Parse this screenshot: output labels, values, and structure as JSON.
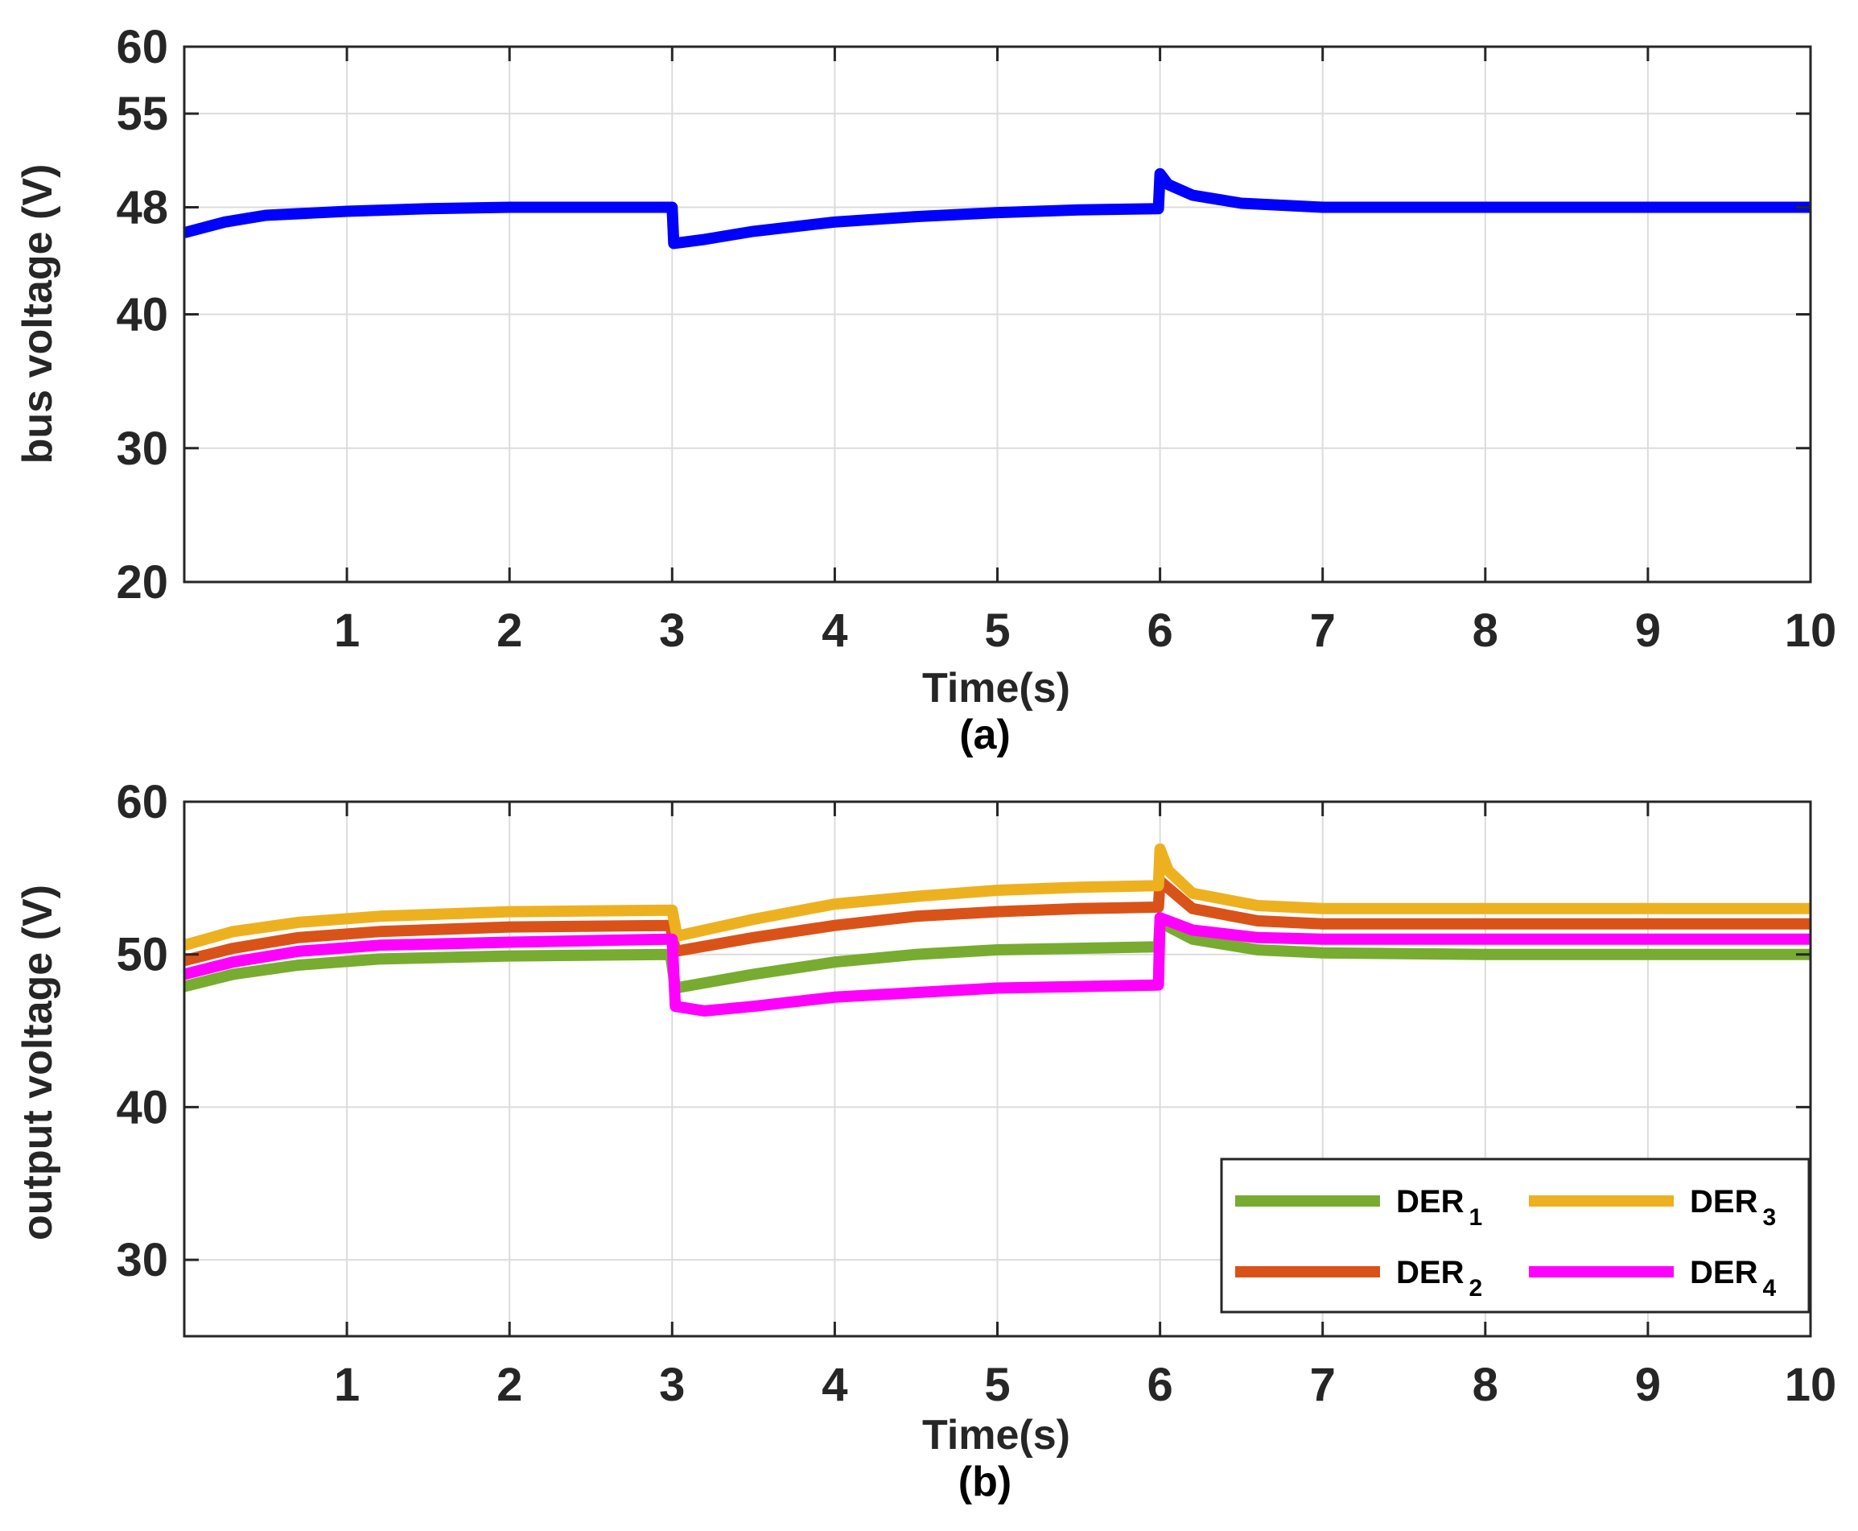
{
  "chart_data": [
    {
      "type": "line",
      "caption": "(a)",
      "xlabel": "Time(s)",
      "ylabel": "bus voltage (V)",
      "xlim": [
        0,
        10
      ],
      "ylim": [
        20,
        60
      ],
      "xticks": [
        1,
        2,
        3,
        4,
        5,
        6,
        7,
        8,
        9,
        10
      ],
      "xtick_labels": [
        "1",
        "2",
        "3",
        "4",
        "5",
        "6",
        "7",
        "8",
        "9",
        "10"
      ],
      "yticks": [
        20,
        30,
        40,
        48,
        55,
        60
      ],
      "ytick_labels": [
        "20",
        "30",
        "40",
        "48",
        "55",
        "60"
      ],
      "grid": true,
      "series": [
        {
          "name": "bus voltage",
          "color": "#0000ff",
          "points": [
            [
              0,
              46.1
            ],
            [
              0.25,
              46.9
            ],
            [
              0.5,
              47.4
            ],
            [
              1,
              47.7
            ],
            [
              1.5,
              47.9
            ],
            [
              2,
              48.0
            ],
            [
              2.5,
              48.0
            ],
            [
              3,
              48.0
            ],
            [
              3.01,
              45.3
            ],
            [
              3.2,
              45.6
            ],
            [
              3.5,
              46.2
            ],
            [
              4,
              46.9
            ],
            [
              4.5,
              47.3
            ],
            [
              5,
              47.6
            ],
            [
              5.5,
              47.8
            ],
            [
              5.99,
              47.9
            ],
            [
              6.0,
              50.5
            ],
            [
              6.05,
              49.7
            ],
            [
              6.2,
              48.9
            ],
            [
              6.5,
              48.3
            ],
            [
              7,
              48.0
            ],
            [
              8,
              48.0
            ],
            [
              9,
              48.0
            ],
            [
              10,
              48.0
            ]
          ]
        }
      ]
    },
    {
      "type": "line",
      "caption": "(b)",
      "xlabel": "Time(s)",
      "ylabel": "output voltage (V)",
      "xlim": [
        0,
        10
      ],
      "ylim": [
        25,
        60
      ],
      "xticks": [
        1,
        2,
        3,
        4,
        5,
        6,
        7,
        8,
        9,
        10
      ],
      "xtick_labels": [
        "1",
        "2",
        "3",
        "4",
        "5",
        "6",
        "7",
        "8",
        "9",
        "10"
      ],
      "yticks": [
        30,
        40,
        50,
        60
      ],
      "ytick_labels": [
        "30",
        "40",
        "50",
        "60"
      ],
      "grid": true,
      "legend_position": "bottom-right",
      "series": [
        {
          "name": "DER",
          "subscript": "1",
          "color": "#77ac30",
          "points": [
            [
              0,
              47.9
            ],
            [
              0.3,
              48.7
            ],
            [
              0.7,
              49.3
            ],
            [
              1.2,
              49.7
            ],
            [
              2,
              49.9
            ],
            [
              2.99,
              50.0
            ],
            [
              3.02,
              47.8
            ],
            [
              3.5,
              48.7
            ],
            [
              4,
              49.5
            ],
            [
              4.5,
              50.0
            ],
            [
              5,
              50.3
            ],
            [
              5.5,
              50.4
            ],
            [
              5.99,
              50.5
            ],
            [
              6.0,
              52.1
            ],
            [
              6.2,
              51.0
            ],
            [
              6.6,
              50.3
            ],
            [
              7,
              50.1
            ],
            [
              8,
              50.0
            ],
            [
              10,
              50.0
            ]
          ]
        },
        {
          "name": "DER",
          "subscript": "2",
          "color": "#d95319",
          "points": [
            [
              0,
              49.6
            ],
            [
              0.3,
              50.4
            ],
            [
              0.7,
              51.1
            ],
            [
              1.2,
              51.5
            ],
            [
              2,
              51.8
            ],
            [
              2.99,
              51.9
            ],
            [
              3.02,
              50.2
            ],
            [
              3.5,
              51.1
            ],
            [
              4,
              51.9
            ],
            [
              4.5,
              52.5
            ],
            [
              5,
              52.8
            ],
            [
              5.5,
              53.0
            ],
            [
              5.99,
              53.1
            ],
            [
              6.0,
              54.8
            ],
            [
              6.2,
              53.0
            ],
            [
              6.6,
              52.2
            ],
            [
              7,
              52.0
            ],
            [
              8,
              52.0
            ],
            [
              10,
              52.0
            ]
          ]
        },
        {
          "name": "DER",
          "subscript": "3",
          "color": "#edb120",
          "points": [
            [
              0,
              50.6
            ],
            [
              0.3,
              51.5
            ],
            [
              0.7,
              52.1
            ],
            [
              1.2,
              52.5
            ],
            [
              2,
              52.8
            ],
            [
              2.99,
              52.9
            ],
            [
              3.0,
              52.9
            ],
            [
              3.03,
              51.2
            ],
            [
              3.5,
              52.3
            ],
            [
              4,
              53.3
            ],
            [
              4.5,
              53.8
            ],
            [
              5,
              54.2
            ],
            [
              5.5,
              54.4
            ],
            [
              5.99,
              54.5
            ],
            [
              6.0,
              56.9
            ],
            [
              6.05,
              55.5
            ],
            [
              6.2,
              54.0
            ],
            [
              6.6,
              53.2
            ],
            [
              7,
              53.0
            ],
            [
              8,
              53.0
            ],
            [
              10,
              53.0
            ]
          ]
        },
        {
          "name": "DER",
          "subscript": "4",
          "color": "#ff00ff",
          "points": [
            [
              0,
              48.7
            ],
            [
              0.3,
              49.5
            ],
            [
              0.7,
              50.2
            ],
            [
              1.2,
              50.6
            ],
            [
              2,
              50.8
            ],
            [
              2.99,
              51.0
            ],
            [
              3.0,
              51.0
            ],
            [
              3.02,
              46.6
            ],
            [
              3.2,
              46.3
            ],
            [
              3.5,
              46.6
            ],
            [
              4,
              47.2
            ],
            [
              4.5,
              47.5
            ],
            [
              5,
              47.8
            ],
            [
              5.5,
              47.9
            ],
            [
              5.99,
              48.0
            ],
            [
              6.0,
              52.4
            ],
            [
              6.2,
              51.6
            ],
            [
              6.6,
              51.1
            ],
            [
              7,
              51.0
            ],
            [
              8,
              51.0
            ],
            [
              10,
              51.0
            ]
          ]
        }
      ]
    }
  ]
}
